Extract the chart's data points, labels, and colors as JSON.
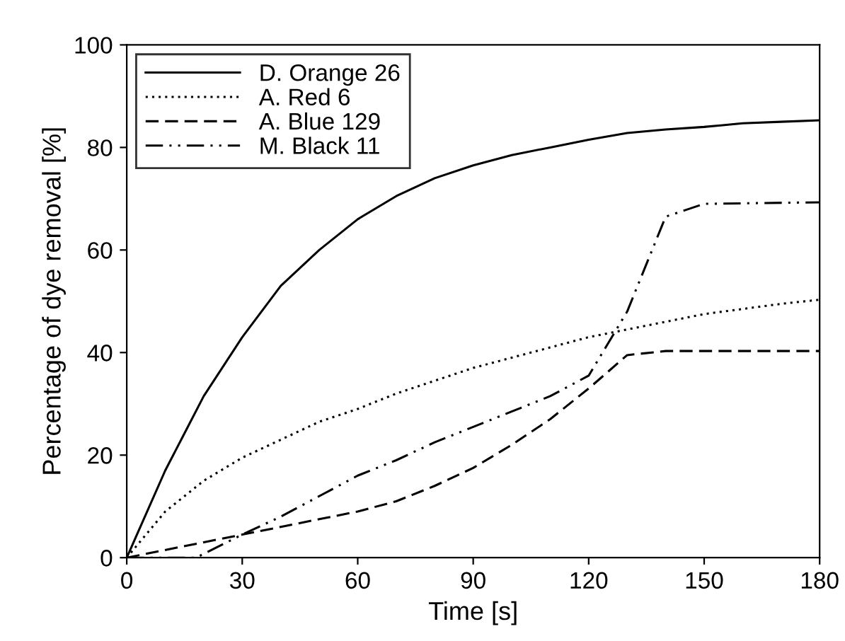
{
  "chart_data": {
    "type": "line",
    "xlabel": "Time [s]",
    "ylabel": "Percentage of dye removal [%]",
    "xlim": [
      0,
      180
    ],
    "xticks": [
      0,
      30,
      60,
      90,
      120,
      150,
      180
    ],
    "ylim": [
      0,
      100
    ],
    "yticks": [
      0,
      20,
      40,
      60,
      80,
      100
    ],
    "grid": false,
    "legend": "top left",
    "marker": "none",
    "series": [
      {
        "name": "D. Orange 26",
        "color": "#000000",
        "line_style": "solid",
        "x": [
          0,
          10,
          20,
          30,
          40,
          50,
          60,
          70,
          80,
          90,
          100,
          110,
          120,
          130,
          140,
          150,
          160,
          170,
          180
        ],
        "values": [
          0,
          17,
          31.5,
          43,
          53,
          60,
          66,
          70.5,
          74,
          76.5,
          78.5,
          80,
          81.5,
          82.8,
          83.5,
          84,
          84.7,
          85,
          85.3
        ]
      },
      {
        "name": "A. Red 6",
        "color": "#000000",
        "line_style": "dotted",
        "x": [
          0,
          10,
          20,
          30,
          40,
          50,
          60,
          70,
          80,
          90,
          100,
          110,
          120,
          130,
          140,
          150,
          160,
          170,
          180
        ],
        "values": [
          0,
          9,
          15,
          19.5,
          23,
          26.5,
          29,
          32,
          34.5,
          37,
          39,
          41,
          43,
          44.5,
          46,
          47.5,
          48.5,
          49.5,
          50.3
        ]
      },
      {
        "name": "A. Blue 129",
        "color": "#000000",
        "line_style": "dashed",
        "x": [
          0,
          20,
          30,
          40,
          50,
          60,
          70,
          80,
          90,
          100,
          110,
          120,
          130,
          140,
          180
        ],
        "values": [
          0,
          3,
          4.5,
          6,
          7.5,
          9,
          11,
          14,
          17.5,
          22,
          27,
          33,
          39.5,
          40.3,
          40.3
        ]
      },
      {
        "name": "M. Black 11",
        "color": "#000000",
        "line_style": "dashdotdot",
        "x": [
          0,
          18,
          30,
          40,
          50,
          60,
          70,
          80,
          90,
          100,
          110,
          120,
          130,
          140,
          150,
          180
        ],
        "values": [
          0,
          0,
          4.5,
          8,
          12,
          16,
          19,
          22.5,
          25.5,
          28.5,
          31.5,
          35.5,
          48,
          66.5,
          69,
          69.3
        ]
      }
    ]
  }
}
